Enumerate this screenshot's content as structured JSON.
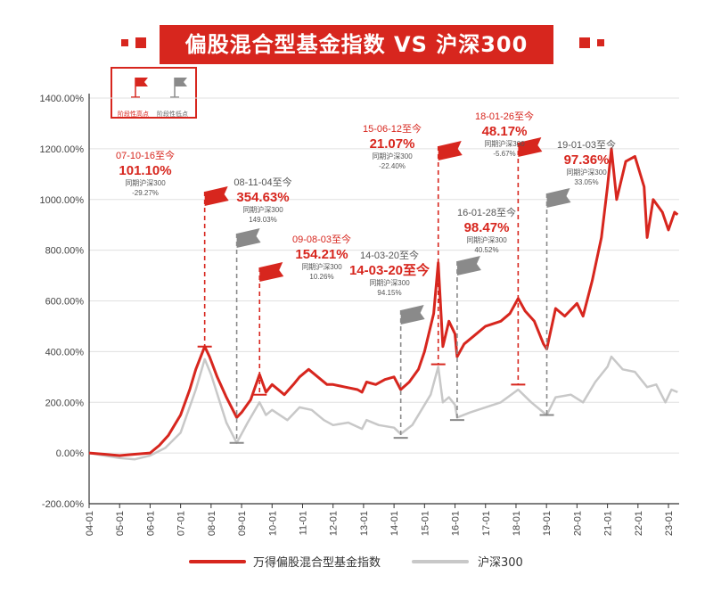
{
  "title": "偏股混合型基金指数 VS 沪深300",
  "flag_legend": {
    "high_label": "阶段性高点",
    "low_label": "阶段性低点"
  },
  "legend": {
    "fund": "万得偏股混合型基金指数",
    "hs300": "沪深300"
  },
  "colors": {
    "fund": "#d7261e",
    "hs300": "#c8c8c8",
    "high_flag": "#d7261e",
    "low_flag": "#8a8a8a",
    "grid": "#e0e0e0"
  },
  "chart_data": {
    "type": "line",
    "ylim": [
      -200,
      1400
    ],
    "yticks": [
      "-200.00%",
      "0.00%",
      "200.00%",
      "400.00%",
      "600.00%",
      "800.00%",
      "1000.00%",
      "1200.00%",
      "1400.00%"
    ],
    "x_ticks": [
      "04-01",
      "05-01",
      "06-01",
      "07-01",
      "08-01",
      "09-01",
      "10-01",
      "11-01",
      "12-01",
      "13-01",
      "14-01",
      "15-01",
      "16-01",
      "17-01",
      "18-01",
      "19-01",
      "20-01",
      "21-01",
      "22-01",
      "23-01"
    ],
    "series": [
      {
        "name": "万得偏股混合型基金指数",
        "points": [
          [
            2004.0,
            0
          ],
          [
            2004.5,
            -5
          ],
          [
            2005.0,
            -10
          ],
          [
            2005.5,
            -5
          ],
          [
            2006.0,
            0
          ],
          [
            2006.3,
            30
          ],
          [
            2006.6,
            70
          ],
          [
            2007.0,
            150
          ],
          [
            2007.3,
            250
          ],
          [
            2007.5,
            330
          ],
          [
            2007.79,
            420
          ],
          [
            2007.95,
            380
          ],
          [
            2008.2,
            300
          ],
          [
            2008.5,
            220
          ],
          [
            2008.84,
            140
          ],
          [
            2009.0,
            160
          ],
          [
            2009.3,
            210
          ],
          [
            2009.59,
            310
          ],
          [
            2009.8,
            240
          ],
          [
            2010.0,
            270
          ],
          [
            2010.4,
            230
          ],
          [
            2010.7,
            270
          ],
          [
            2010.9,
            300
          ],
          [
            2011.2,
            330
          ],
          [
            2011.5,
            300
          ],
          [
            2011.8,
            270
          ],
          [
            2012.0,
            270
          ],
          [
            2012.4,
            260
          ],
          [
            2012.8,
            250
          ],
          [
            2012.95,
            240
          ],
          [
            2013.1,
            280
          ],
          [
            2013.4,
            270
          ],
          [
            2013.7,
            290
          ],
          [
            2014.0,
            300
          ],
          [
            2014.22,
            250
          ],
          [
            2014.5,
            280
          ],
          [
            2014.8,
            330
          ],
          [
            2015.0,
            400
          ],
          [
            2015.3,
            550
          ],
          [
            2015.45,
            750
          ],
          [
            2015.6,
            420
          ],
          [
            2015.8,
            520
          ],
          [
            2016.0,
            470
          ],
          [
            2016.07,
            380
          ],
          [
            2016.3,
            430
          ],
          [
            2016.6,
            460
          ],
          [
            2017.0,
            500
          ],
          [
            2017.5,
            520
          ],
          [
            2017.8,
            550
          ],
          [
            2018.07,
            610
          ],
          [
            2018.3,
            560
          ],
          [
            2018.6,
            520
          ],
          [
            2018.9,
            430
          ],
          [
            2019.01,
            410
          ],
          [
            2019.3,
            570
          ],
          [
            2019.6,
            540
          ],
          [
            2020.0,
            590
          ],
          [
            2020.2,
            540
          ],
          [
            2020.5,
            680
          ],
          [
            2020.8,
            850
          ],
          [
            2021.0,
            1050
          ],
          [
            2021.13,
            1200
          ],
          [
            2021.3,
            1000
          ],
          [
            2021.6,
            1150
          ],
          [
            2021.9,
            1170
          ],
          [
            2022.2,
            1050
          ],
          [
            2022.3,
            850
          ],
          [
            2022.5,
            1000
          ],
          [
            2022.8,
            950
          ],
          [
            2023.0,
            880
          ],
          [
            2023.2,
            950
          ],
          [
            2023.3,
            940
          ]
        ]
      },
      {
        "name": "沪深300",
        "points": [
          [
            2004.0,
            0
          ],
          [
            2004.5,
            -10
          ],
          [
            2005.0,
            -20
          ],
          [
            2005.5,
            -25
          ],
          [
            2006.0,
            -10
          ],
          [
            2006.5,
            20
          ],
          [
            2007.0,
            80
          ],
          [
            2007.5,
            250
          ],
          [
            2007.79,
            370
          ],
          [
            2008.0,
            310
          ],
          [
            2008.5,
            120
          ],
          [
            2008.84,
            40
          ],
          [
            2009.2,
            120
          ],
          [
            2009.59,
            200
          ],
          [
            2009.8,
            150
          ],
          [
            2010.0,
            170
          ],
          [
            2010.5,
            130
          ],
          [
            2010.9,
            180
          ],
          [
            2011.3,
            170
          ],
          [
            2011.7,
            130
          ],
          [
            2012.0,
            110
          ],
          [
            2012.5,
            120
          ],
          [
            2012.95,
            95
          ],
          [
            2013.1,
            130
          ],
          [
            2013.5,
            110
          ],
          [
            2014.0,
            100
          ],
          [
            2014.22,
            75
          ],
          [
            2014.6,
            110
          ],
          [
            2014.9,
            170
          ],
          [
            2015.2,
            230
          ],
          [
            2015.45,
            340
          ],
          [
            2015.6,
            200
          ],
          [
            2015.8,
            220
          ],
          [
            2016.0,
            190
          ],
          [
            2016.07,
            140
          ],
          [
            2016.5,
            160
          ],
          [
            2017.0,
            180
          ],
          [
            2017.5,
            200
          ],
          [
            2018.07,
            250
          ],
          [
            2018.5,
            200
          ],
          [
            2018.9,
            160
          ],
          [
            2019.01,
            150
          ],
          [
            2019.3,
            220
          ],
          [
            2019.8,
            230
          ],
          [
            2020.2,
            200
          ],
          [
            2020.6,
            280
          ],
          [
            2021.0,
            340
          ],
          [
            2021.13,
            380
          ],
          [
            2021.5,
            330
          ],
          [
            2021.9,
            320
          ],
          [
            2022.3,
            260
          ],
          [
            2022.6,
            270
          ],
          [
            2022.9,
            200
          ],
          [
            2023.1,
            250
          ],
          [
            2023.3,
            240
          ]
        ]
      }
    ],
    "annotations": [
      {
        "kind": "high",
        "date": "07-10-16至今",
        "value": "101.10%",
        "peer_label": "同期沪深300",
        "peer_value": "-29.27%",
        "x": 2007.79,
        "y": 420
      },
      {
        "kind": "low",
        "date": "08-11-04至今",
        "value": "354.63%",
        "peer_label": "同期沪深300",
        "peer_value": "149.03%",
        "x": 2008.84,
        "y": 40
      },
      {
        "kind": "high",
        "date": "09-08-03至今",
        "value": "154.21%",
        "peer_label": "同期沪深300",
        "peer_value": "10.26%",
        "x": 2009.59,
        "y": 230
      },
      {
        "kind": "low",
        "date": "14-03-20至今",
        "value": "14-03-20至今",
        "peer_label": "同期沪深300",
        "peer_value": "94.15%",
        "x": 2014.22,
        "y": 60
      },
      {
        "kind": "high",
        "date": "15-06-12至今",
        "value": "21.07%",
        "peer_label": "同期沪深300",
        "peer_value": "-22.40%",
        "x": 2015.45,
        "y": 350
      },
      {
        "kind": "low",
        "date": "16-01-28至今",
        "value": "98.47%",
        "peer_label": "同期沪深300",
        "peer_value": "40.52%",
        "x": 2016.07,
        "y": 130
      },
      {
        "kind": "high",
        "date": "18-01-26至今",
        "value": "48.17%",
        "peer_label": "同期沪深300",
        "peer_value": "-5.67%",
        "x": 2018.07,
        "y": 270
      },
      {
        "kind": "low",
        "date": "19-01-03至今",
        "value": "97.36%",
        "peer_label": "同期沪深300",
        "peer_value": "33.05%",
        "x": 2019.01,
        "y": 150
      }
    ]
  }
}
